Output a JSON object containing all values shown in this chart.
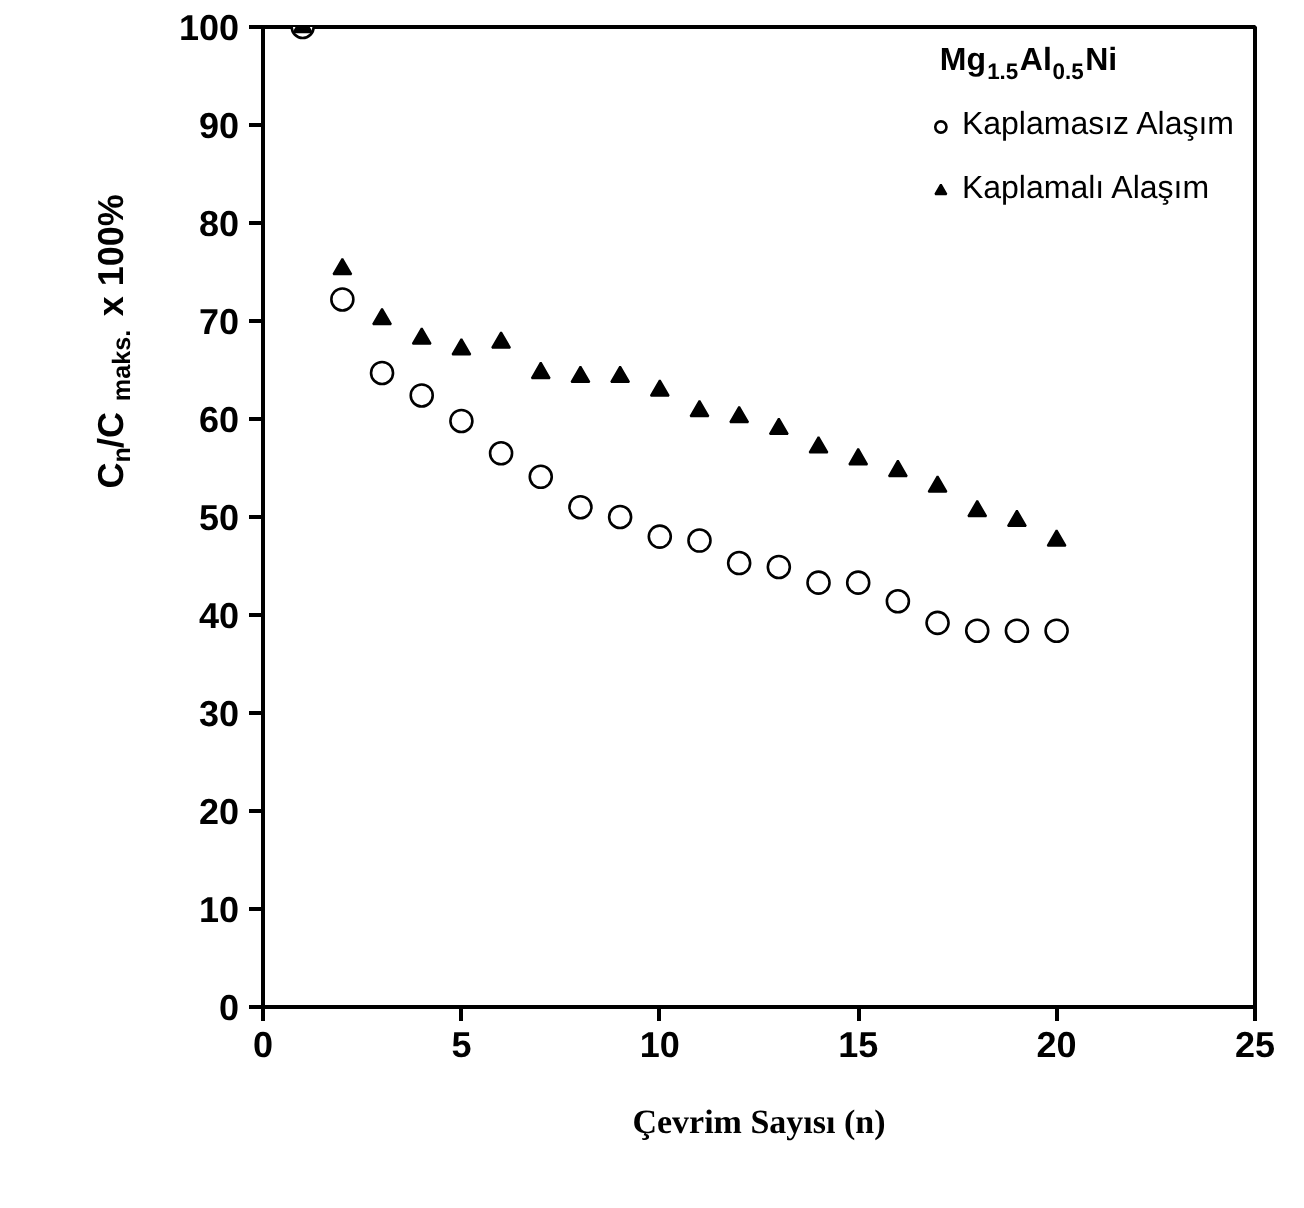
{
  "chart_data": {
    "type": "scatter",
    "xlabel": "Çevrim Sayısı (n)",
    "ylabel": "C$_{n}$/C$_{maks.}$ x 100%",
    "legend_title": "Mg$_{1.5}$Al$_{0.5}$Ni",
    "x": [
      1,
      2,
      3,
      4,
      5,
      6,
      7,
      8,
      9,
      10,
      11,
      12,
      13,
      14,
      15,
      16,
      17,
      18,
      19,
      20
    ],
    "series": [
      {
        "name": "Kaplamasız Alaşım",
        "color": "#000000",
        "marker": "circle",
        "values": [
          100,
          72.2,
          64.7,
          62.4,
          59.8,
          56.5,
          54.1,
          51,
          50,
          48,
          47.6,
          45.3,
          44.9,
          43.3,
          43.3,
          41.4,
          39.2,
          38.4,
          38.4,
          38.4
        ]
      },
      {
        "name": "Kaplamalı Alaşım",
        "color": "#000000",
        "marker": "triangle",
        "values": [
          100,
          75.3,
          70.2,
          68.2,
          67.1,
          67.8,
          64.7,
          64.3,
          64.3,
          62.9,
          60.8,
          60.2,
          59,
          57.1,
          55.9,
          54.7,
          53.1,
          50.6,
          49.6,
          47.6
        ]
      }
    ],
    "xlim": [
      0,
      25
    ],
    "xticks": [
      0,
      5,
      10,
      15,
      20,
      25
    ],
    "ylim": [
      0,
      100
    ],
    "yticks": [
      0,
      10,
      20,
      30,
      40,
      50,
      60,
      70,
      80,
      90,
      100
    ],
    "grid": false,
    "legend": "top right"
  }
}
